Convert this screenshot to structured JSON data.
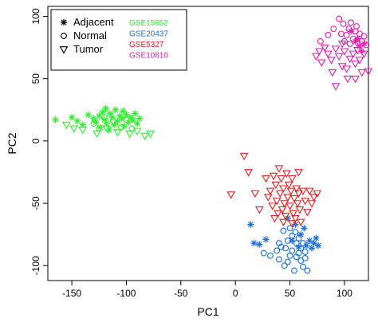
{
  "chart_data": {
    "type": "scatter",
    "title": "",
    "xlabel": "PC1",
    "ylabel": "PC2",
    "xlim": [
      -172,
      122
    ],
    "ylim": [
      -112,
      108
    ],
    "xticks": [
      -150,
      -100,
      -50,
      0,
      50,
      100
    ],
    "yticks": [
      -100,
      -50,
      0,
      50,
      100
    ],
    "grid": false,
    "legend_placement": "top-left",
    "shape_legend": [
      {
        "label": "Adjacent",
        "marker": "asterisk"
      },
      {
        "label": "Normal",
        "marker": "circle"
      },
      {
        "label": "Tumor",
        "marker": "triangle-down"
      }
    ],
    "color_legend": [
      {
        "label": "GSE15852",
        "color": "#33ee33"
      },
      {
        "label": "GSE20437",
        "color": "#1e6fd9"
      },
      {
        "label": "GSE5327",
        "color": "#e62020"
      },
      {
        "label": "GSE10810",
        "color": "#e020b0"
      }
    ],
    "series": [
      {
        "dataset": "GSE15852",
        "marker": "asterisk",
        "color": "#33ee33",
        "points": [
          [
            -165,
            17
          ],
          [
            -150,
            19
          ],
          [
            -145,
            16
          ],
          [
            -140,
            13
          ],
          [
            -135,
            21
          ],
          [
            -130,
            18
          ],
          [
            -128,
            15
          ],
          [
            -125,
            20
          ],
          [
            -122,
            23
          ],
          [
            -120,
            17
          ],
          [
            -118,
            14
          ],
          [
            -115,
            22
          ],
          [
            -113,
            19
          ],
          [
            -110,
            25
          ],
          [
            -108,
            16
          ],
          [
            -106,
            20
          ],
          [
            -104,
            18
          ],
          [
            -102,
            12
          ],
          [
            -100,
            21
          ],
          [
            -98,
            15
          ],
          [
            -96,
            19
          ],
          [
            -94,
            17
          ],
          [
            -92,
            22
          ],
          [
            -90,
            14
          ],
          [
            -88,
            18
          ],
          [
            -124,
            11
          ],
          [
            -116,
            9
          ],
          [
            -119,
            26
          ],
          [
            -111,
            13
          ],
          [
            -103,
            24
          ]
        ]
      },
      {
        "dataset": "GSE15852",
        "marker": "circle",
        "color": "#33ee33",
        "points": [
          [
            -130,
            14
          ],
          [
            -125,
            10
          ],
          [
            -120,
            19
          ],
          [
            -112,
            16
          ],
          [
            -105,
            11
          ],
          [
            -100,
            17
          ],
          [
            -95,
            10
          ]
        ]
      },
      {
        "dataset": "GSE15852",
        "marker": "triangle-down",
        "color": "#33ee33",
        "points": [
          [
            -155,
            13
          ],
          [
            -148,
            10
          ],
          [
            -140,
            9
          ],
          [
            -127,
            6
          ],
          [
            -118,
            10
          ],
          [
            -108,
            7
          ],
          [
            -97,
            6
          ],
          [
            -90,
            8
          ],
          [
            -83,
            4
          ],
          [
            -78,
            6
          ]
        ]
      },
      {
        "dataset": "GSE20437",
        "marker": "asterisk",
        "color": "#1e6fd9",
        "points": [
          [
            14,
            -67
          ],
          [
            17,
            -82
          ],
          [
            22,
            -83
          ],
          [
            28,
            -79
          ],
          [
            48,
            -62
          ],
          [
            55,
            -67
          ],
          [
            60,
            -75
          ],
          [
            63,
            -70
          ],
          [
            65,
            -84
          ],
          [
            68,
            -80
          ],
          [
            70,
            -86
          ],
          [
            72,
            -82
          ],
          [
            74,
            -78
          ],
          [
            76,
            -84
          ],
          [
            58,
            -85
          ],
          [
            52,
            -80
          ]
        ]
      },
      {
        "dataset": "GSE20437",
        "marker": "circle",
        "color": "#1e6fd9",
        "points": [
          [
            26,
            -90
          ],
          [
            32,
            -92
          ],
          [
            38,
            -88
          ],
          [
            40,
            -95
          ],
          [
            42,
            -85
          ],
          [
            45,
            -100
          ],
          [
            48,
            -97
          ],
          [
            50,
            -92
          ],
          [
            52,
            -88
          ],
          [
            54,
            -104
          ],
          [
            56,
            -82
          ],
          [
            58,
            -90
          ],
          [
            60,
            -96
          ],
          [
            62,
            -101
          ],
          [
            64,
            -94
          ],
          [
            66,
            -104
          ],
          [
            44,
            -72
          ],
          [
            48,
            -80
          ],
          [
            52,
            -76
          ],
          [
            55,
            -73
          ],
          [
            58,
            -78
          ],
          [
            60,
            -86
          ],
          [
            62,
            -82
          ],
          [
            64,
            -89
          ],
          [
            40,
            -82
          ],
          [
            46,
            -86
          ],
          [
            50,
            -70
          ],
          [
            56,
            -93
          ]
        ]
      },
      {
        "dataset": "GSE5327",
        "marker": "triangle-down",
        "color": "#e62020",
        "points": [
          [
            -4,
            -43
          ],
          [
            8,
            -12
          ],
          [
            12,
            -25
          ],
          [
            18,
            -42
          ],
          [
            22,
            -55
          ],
          [
            28,
            -30
          ],
          [
            30,
            -45
          ],
          [
            32,
            -40
          ],
          [
            34,
            -52
          ],
          [
            35,
            -28
          ],
          [
            37,
            -35
          ],
          [
            38,
            -48
          ],
          [
            39,
            -58
          ],
          [
            40,
            -22
          ],
          [
            41,
            -42
          ],
          [
            42,
            -30
          ],
          [
            43,
            -55
          ],
          [
            44,
            -38
          ],
          [
            45,
            -50
          ],
          [
            46,
            -60
          ],
          [
            47,
            -26
          ],
          [
            48,
            -45
          ],
          [
            49,
            -35
          ],
          [
            50,
            -52
          ],
          [
            51,
            -40
          ],
          [
            52,
            -30
          ],
          [
            53,
            -58
          ],
          [
            54,
            -46
          ],
          [
            55,
            -62
          ],
          [
            56,
            -38
          ],
          [
            57,
            -50
          ],
          [
            58,
            -42
          ],
          [
            59,
            -55
          ],
          [
            60,
            -65
          ],
          [
            62,
            -40
          ],
          [
            64,
            -48
          ],
          [
            66,
            -57
          ],
          [
            68,
            -40
          ],
          [
            70,
            -50
          ],
          [
            72,
            -45
          ],
          [
            75,
            -42
          ],
          [
            36,
            -62
          ],
          [
            44,
            -65
          ],
          [
            52,
            -66
          ],
          [
            58,
            -25
          ]
        ]
      },
      {
        "dataset": "GSE10810",
        "marker": "triangle-down",
        "color": "#e020b0",
        "points": [
          [
            74,
            68
          ],
          [
            77,
            72
          ],
          [
            79,
            63
          ],
          [
            82,
            75
          ],
          [
            85,
            70
          ],
          [
            88,
            65
          ],
          [
            92,
            74
          ],
          [
            95,
            68
          ],
          [
            98,
            60
          ],
          [
            100,
            72
          ],
          [
            103,
            50
          ],
          [
            105,
            66
          ],
          [
            108,
            70
          ],
          [
            110,
            62
          ],
          [
            112,
            73
          ],
          [
            114,
            65
          ],
          [
            116,
            55
          ],
          [
            118,
            70
          ],
          [
            92,
            44
          ],
          [
            110,
            50
          ],
          [
            122,
            56
          ],
          [
            98,
            78
          ],
          [
            89,
            55
          ],
          [
            102,
            58
          ]
        ]
      },
      {
        "dataset": "GSE10810",
        "marker": "circle",
        "color": "#e020b0",
        "points": [
          [
            78,
            80
          ],
          [
            85,
            85
          ],
          [
            90,
            90
          ],
          [
            95,
            98
          ],
          [
            99,
            94
          ],
          [
            102,
            85
          ],
          [
            104,
            90
          ],
          [
            106,
            95
          ],
          [
            108,
            82
          ],
          [
            110,
            88
          ],
          [
            112,
            79
          ],
          [
            114,
            86
          ],
          [
            116,
            80
          ],
          [
            118,
            84
          ],
          [
            120,
            77
          ],
          [
            105,
            78
          ],
          [
            100,
            80
          ],
          [
            111,
            92
          ],
          [
            97,
            86
          ]
        ]
      },
      {
        "dataset": "GSE10810",
        "marker": "asterisk",
        "color": "#e020b0",
        "points": [
          [
            106,
            88
          ],
          [
            110,
            80
          ],
          [
            114,
            76
          ],
          [
            118,
            78
          ],
          [
            116,
            72
          ],
          [
            112,
            82
          ]
        ]
      }
    ]
  }
}
